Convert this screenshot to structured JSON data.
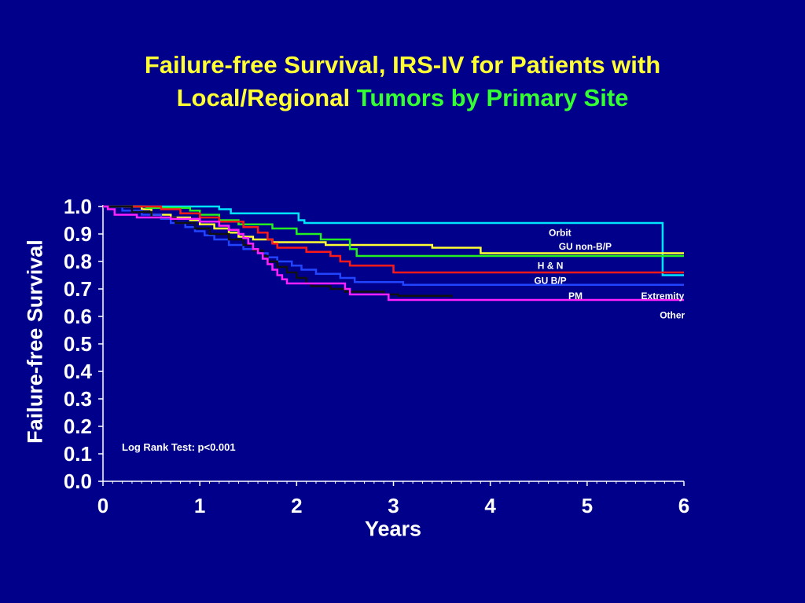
{
  "title": {
    "line1": "Failure-free Survival, IRS-IV  for Patients with",
    "line2_yellow": "Local/Regional",
    "line2_green": "Tumors by Primary Site"
  },
  "colors": {
    "background": "#00008B",
    "title_yellow": "#FFFF33",
    "title_green": "#33FF33",
    "text": "#FFFFFF"
  },
  "chart_data": {
    "type": "line",
    "step": true,
    "title": "Failure-free Survival, IRS-IV  for Patients with Local/Regional Tumors by Primary Site",
    "xlabel": "Years",
    "ylabel": "Failure-free Survival",
    "xlim": [
      0,
      6
    ],
    "ylim": [
      0,
      1
    ],
    "x_ticks": [
      "0",
      "1",
      "2",
      "3",
      "4",
      "5",
      "6"
    ],
    "y_ticks": [
      "0.0",
      "0.1",
      "0.2",
      "0.3",
      "0.4",
      "0.5",
      "0.6",
      "0.7",
      "0.8",
      "0.9",
      "1.0"
    ],
    "grid": false,
    "annotation": "Log Rank Test: p<0.001",
    "series_labels": [
      {
        "text": "Orbit",
        "x": 4.72,
        "y": 0.905
      },
      {
        "text": "GU non-B/P",
        "x": 4.98,
        "y": 0.855
      },
      {
        "text": "H & N",
        "x": 4.62,
        "y": 0.785
      },
      {
        "text": "GU B/P",
        "x": 4.62,
        "y": 0.73
      },
      {
        "text": "PM",
        "x": 4.88,
        "y": 0.675
      },
      {
        "text": "Extremity",
        "x": 5.78,
        "y": 0.675
      },
      {
        "text": "Other",
        "x": 5.88,
        "y": 0.605
      }
    ],
    "series": [
      {
        "name": "Orbit",
        "color": "#00E5FF",
        "points": [
          [
            0,
            1.0
          ],
          [
            1.2,
            1.0
          ],
          [
            1.2,
            0.99
          ],
          [
            1.32,
            0.99
          ],
          [
            1.32,
            0.975
          ],
          [
            2.02,
            0.975
          ],
          [
            2.02,
            0.95
          ],
          [
            2.08,
            0.95
          ],
          [
            2.08,
            0.94
          ],
          [
            5.78,
            0.94
          ],
          [
            5.78,
            0.75
          ],
          [
            6.0,
            0.75
          ]
        ]
      },
      {
        "name": "GU non-B/P",
        "color": "#FFFF33",
        "points": [
          [
            0,
            1.0
          ],
          [
            0.4,
            1.0
          ],
          [
            0.4,
            0.99
          ],
          [
            0.5,
            0.99
          ],
          [
            0.5,
            0.97
          ],
          [
            0.7,
            0.97
          ],
          [
            0.7,
            0.96
          ],
          [
            0.9,
            0.96
          ],
          [
            0.9,
            0.95
          ],
          [
            1.0,
            0.95
          ],
          [
            1.0,
            0.935
          ],
          [
            1.15,
            0.935
          ],
          [
            1.15,
            0.92
          ],
          [
            1.3,
            0.92
          ],
          [
            1.3,
            0.905
          ],
          [
            1.4,
            0.905
          ],
          [
            1.4,
            0.89
          ],
          [
            1.55,
            0.89
          ],
          [
            1.55,
            0.88
          ],
          [
            1.75,
            0.88
          ],
          [
            1.75,
            0.87
          ],
          [
            2.3,
            0.87
          ],
          [
            2.3,
            0.86
          ],
          [
            3.4,
            0.86
          ],
          [
            3.4,
            0.85
          ],
          [
            3.9,
            0.85
          ],
          [
            3.9,
            0.83
          ],
          [
            6.0,
            0.83
          ]
        ]
      },
      {
        "name": "Extremity",
        "color": "#22EE22",
        "points": [
          [
            0,
            1.0
          ],
          [
            0.45,
            1.0
          ],
          [
            0.45,
            0.995
          ],
          [
            0.9,
            0.995
          ],
          [
            0.9,
            0.985
          ],
          [
            1.0,
            0.985
          ],
          [
            1.0,
            0.97
          ],
          [
            1.2,
            0.97
          ],
          [
            1.2,
            0.95
          ],
          [
            1.4,
            0.95
          ],
          [
            1.4,
            0.935
          ],
          [
            1.75,
            0.935
          ],
          [
            1.75,
            0.92
          ],
          [
            2.0,
            0.92
          ],
          [
            2.0,
            0.9
          ],
          [
            2.25,
            0.9
          ],
          [
            2.25,
            0.88
          ],
          [
            2.55,
            0.88
          ],
          [
            2.55,
            0.845
          ],
          [
            2.62,
            0.845
          ],
          [
            2.62,
            0.82
          ],
          [
            6.0,
            0.82
          ]
        ]
      },
      {
        "name": "H & N",
        "color": "#FF1A1A",
        "points": [
          [
            0,
            1.0
          ],
          [
            0.6,
            1.0
          ],
          [
            0.6,
            0.99
          ],
          [
            0.8,
            0.99
          ],
          [
            0.8,
            0.975
          ],
          [
            1.0,
            0.975
          ],
          [
            1.0,
            0.96
          ],
          [
            1.2,
            0.96
          ],
          [
            1.2,
            0.945
          ],
          [
            1.45,
            0.945
          ],
          [
            1.45,
            0.925
          ],
          [
            1.6,
            0.925
          ],
          [
            1.6,
            0.905
          ],
          [
            1.7,
            0.905
          ],
          [
            1.7,
            0.88
          ],
          [
            1.75,
            0.88
          ],
          [
            1.75,
            0.865
          ],
          [
            1.8,
            0.865
          ],
          [
            1.8,
            0.85
          ],
          [
            2.1,
            0.85
          ],
          [
            2.1,
            0.835
          ],
          [
            2.35,
            0.835
          ],
          [
            2.35,
            0.82
          ],
          [
            2.45,
            0.82
          ],
          [
            2.45,
            0.8
          ],
          [
            2.55,
            0.8
          ],
          [
            2.55,
            0.785
          ],
          [
            3.0,
            0.785
          ],
          [
            3.0,
            0.76
          ],
          [
            6.0,
            0.76
          ]
        ]
      },
      {
        "name": "GU B/P",
        "color": "#2244FF",
        "points": [
          [
            0,
            1.0
          ],
          [
            0.2,
            1.0
          ],
          [
            0.2,
            0.985
          ],
          [
            0.4,
            0.985
          ],
          [
            0.4,
            0.97
          ],
          [
            0.6,
            0.97
          ],
          [
            0.6,
            0.955
          ],
          [
            0.7,
            0.955
          ],
          [
            0.7,
            0.94
          ],
          [
            0.85,
            0.94
          ],
          [
            0.85,
            0.925
          ],
          [
            0.95,
            0.925
          ],
          [
            0.95,
            0.91
          ],
          [
            1.05,
            0.91
          ],
          [
            1.05,
            0.895
          ],
          [
            1.15,
            0.895
          ],
          [
            1.15,
            0.88
          ],
          [
            1.3,
            0.88
          ],
          [
            1.3,
            0.86
          ],
          [
            1.45,
            0.86
          ],
          [
            1.45,
            0.845
          ],
          [
            1.6,
            0.845
          ],
          [
            1.6,
            0.83
          ],
          [
            1.7,
            0.83
          ],
          [
            1.7,
            0.815
          ],
          [
            1.8,
            0.815
          ],
          [
            1.8,
            0.8
          ],
          [
            1.95,
            0.8
          ],
          [
            1.95,
            0.785
          ],
          [
            2.05,
            0.785
          ],
          [
            2.05,
            0.77
          ],
          [
            2.2,
            0.77
          ],
          [
            2.2,
            0.755
          ],
          [
            2.45,
            0.755
          ],
          [
            2.45,
            0.74
          ],
          [
            2.6,
            0.74
          ],
          [
            2.6,
            0.725
          ],
          [
            3.1,
            0.725
          ],
          [
            3.1,
            0.715
          ],
          [
            6.0,
            0.715
          ]
        ]
      },
      {
        "name": "PM",
        "color": "#111111",
        "points": [
          [
            0,
            1.0
          ],
          [
            0.3,
            1.0
          ],
          [
            0.3,
            0.98
          ],
          [
            0.5,
            0.98
          ],
          [
            0.5,
            0.96
          ],
          [
            0.75,
            0.96
          ],
          [
            0.75,
            0.94
          ],
          [
            0.95,
            0.94
          ],
          [
            0.95,
            0.92
          ],
          [
            1.1,
            0.92
          ],
          [
            1.1,
            0.9
          ],
          [
            1.3,
            0.9
          ],
          [
            1.3,
            0.88
          ],
          [
            1.45,
            0.88
          ],
          [
            1.45,
            0.86
          ],
          [
            1.55,
            0.86
          ],
          [
            1.55,
            0.84
          ],
          [
            1.65,
            0.84
          ],
          [
            1.65,
            0.82
          ],
          [
            1.7,
            0.82
          ],
          [
            1.7,
            0.8
          ],
          [
            1.8,
            0.8
          ],
          [
            1.8,
            0.78
          ],
          [
            1.9,
            0.78
          ],
          [
            1.9,
            0.76
          ],
          [
            2.0,
            0.76
          ],
          [
            2.0,
            0.74
          ],
          [
            2.1,
            0.74
          ],
          [
            2.1,
            0.72
          ],
          [
            2.15,
            0.72
          ],
          [
            2.15,
            0.71
          ],
          [
            2.35,
            0.71
          ],
          [
            2.35,
            0.7
          ],
          [
            2.5,
            0.7
          ],
          [
            2.5,
            0.69
          ],
          [
            2.9,
            0.69
          ],
          [
            2.9,
            0.68
          ],
          [
            3.05,
            0.68
          ],
          [
            3.05,
            0.675
          ],
          [
            3.6,
            0.675
          ],
          [
            3.6,
            0.67
          ]
        ]
      },
      {
        "name": "Other",
        "color": "#FF22FF",
        "points": [
          [
            0,
            1.0
          ],
          [
            0.05,
            1.0
          ],
          [
            0.05,
            0.99
          ],
          [
            0.12,
            0.99
          ],
          [
            0.12,
            0.97
          ],
          [
            0.35,
            0.97
          ],
          [
            0.35,
            0.96
          ],
          [
            0.7,
            0.96
          ],
          [
            0.7,
            0.955
          ],
          [
            1.0,
            0.955
          ],
          [
            1.0,
            0.945
          ],
          [
            1.2,
            0.945
          ],
          [
            1.2,
            0.93
          ],
          [
            1.3,
            0.93
          ],
          [
            1.3,
            0.915
          ],
          [
            1.4,
            0.915
          ],
          [
            1.4,
            0.9
          ],
          [
            1.45,
            0.9
          ],
          [
            1.45,
            0.885
          ],
          [
            1.5,
            0.885
          ],
          [
            1.5,
            0.865
          ],
          [
            1.55,
            0.865
          ],
          [
            1.55,
            0.845
          ],
          [
            1.6,
            0.845
          ],
          [
            1.6,
            0.83
          ],
          [
            1.65,
            0.83
          ],
          [
            1.65,
            0.81
          ],
          [
            1.7,
            0.81
          ],
          [
            1.7,
            0.79
          ],
          [
            1.75,
            0.79
          ],
          [
            1.75,
            0.77
          ],
          [
            1.8,
            0.77
          ],
          [
            1.8,
            0.75
          ],
          [
            1.85,
            0.75
          ],
          [
            1.85,
            0.735
          ],
          [
            1.9,
            0.735
          ],
          [
            1.9,
            0.72
          ],
          [
            2.5,
            0.72
          ],
          [
            2.5,
            0.7
          ],
          [
            2.55,
            0.7
          ],
          [
            2.55,
            0.68
          ],
          [
            2.95,
            0.68
          ],
          [
            2.95,
            0.66
          ],
          [
            6.0,
            0.66
          ]
        ]
      }
    ]
  }
}
